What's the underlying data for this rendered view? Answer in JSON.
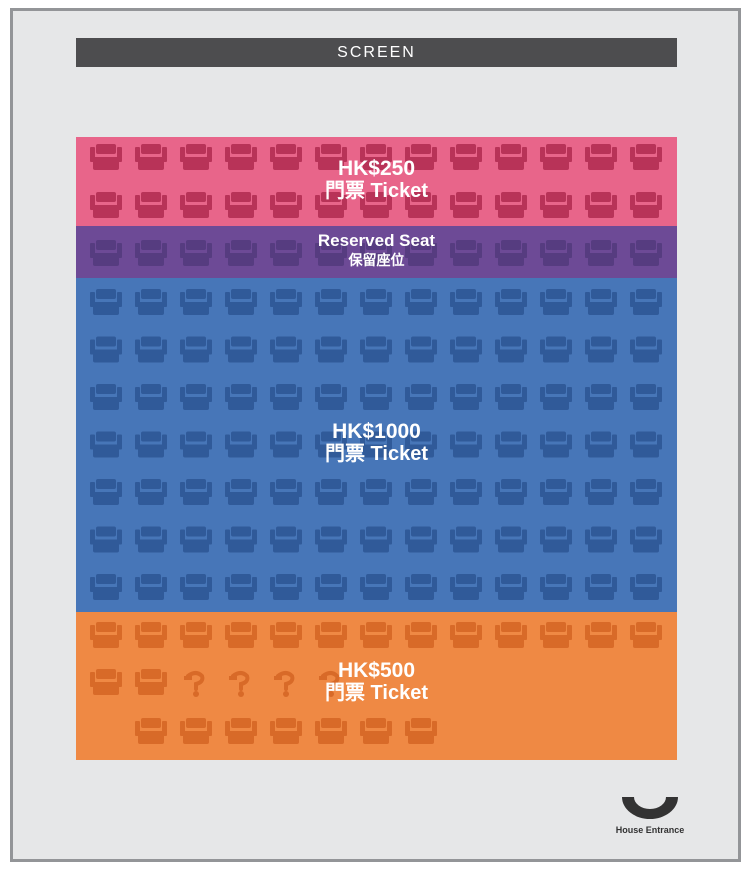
{
  "screen": {
    "label": "SCREEN"
  },
  "colors": {
    "background": "#e6e7e8",
    "frame": "#939598",
    "screen": "#4d4d4f",
    "zone_250": "#e8658a",
    "seat_250": "#b83358",
    "zone_reserved": "#6d4a96",
    "seat_reserved": "#563c80",
    "zone_1000": "#4776b8",
    "seat_1000": "#305a99",
    "zone_500": "#ef8944",
    "seat_500": "#d86a28"
  },
  "zones": {
    "hk250": {
      "price": "HK$250",
      "ticket": "門票 Ticket",
      "rows": 2,
      "seats_per_row": 13
    },
    "reserved": {
      "title": "Reserved Seat",
      "subtitle": "保留座位",
      "rows": 1,
      "seats_per_row": 13
    },
    "hk1000": {
      "price": "HK$1000",
      "ticket": "門票 Ticket",
      "rows": 7,
      "seats_per_row": 13
    },
    "hk500": {
      "price": "HK$500",
      "ticket": "門票 Ticket",
      "row_1": {
        "seats": 13
      },
      "row_2": {
        "seats": 2,
        "wheelchair_spaces": 4
      },
      "row_3": {
        "seats": 7
      }
    }
  },
  "entrance": {
    "label": "House Entrance",
    "icon": "entrance-arc-icon"
  }
}
